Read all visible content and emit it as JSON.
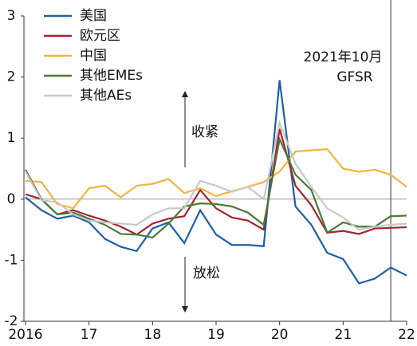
{
  "chart_data": {
    "type": "line",
    "x": [
      2016,
      2016.25,
      2016.5,
      2016.75,
      2017,
      2017.25,
      2017.5,
      2017.75,
      2018,
      2018.25,
      2018.5,
      2018.75,
      2019,
      2019.25,
      2019.5,
      2019.75,
      2020,
      2020.25,
      2020.5,
      2020.75,
      2021,
      2021.25,
      2021.5,
      2021.75,
      2022
    ],
    "series": [
      {
        "name": "美国",
        "color": "#1f5fa8",
        "values": [
          0.03,
          -0.18,
          -0.32,
          -0.27,
          -0.38,
          -0.65,
          -0.78,
          -0.85,
          -0.48,
          -0.38,
          -0.72,
          -0.18,
          -0.58,
          -0.75,
          -0.75,
          -0.77,
          1.95,
          -0.12,
          -0.42,
          -0.88,
          -0.98,
          -1.38,
          -1.3,
          -1.12,
          -1.25
        ]
      },
      {
        "name": "欧元区",
        "color": "#a3232f",
        "values": [
          0.08,
          0.0,
          -0.25,
          -0.18,
          -0.27,
          -0.35,
          -0.45,
          -0.58,
          -0.4,
          -0.32,
          -0.28,
          0.15,
          -0.15,
          -0.3,
          -0.35,
          -0.5,
          1.15,
          0.22,
          -0.1,
          -0.55,
          -0.52,
          -0.57,
          -0.48,
          -0.47,
          -0.46
        ]
      },
      {
        "name": "中国",
        "color": "#f5b342",
        "values": [
          0.3,
          0.28,
          -0.08,
          -0.15,
          0.18,
          0.22,
          0.03,
          0.22,
          0.25,
          0.33,
          0.1,
          0.18,
          0.05,
          0.13,
          0.2,
          0.28,
          0.45,
          0.78,
          0.8,
          0.82,
          0.5,
          0.45,
          0.48,
          0.4,
          0.2
        ]
      },
      {
        "name": "其他EMEs",
        "color": "#4a7a36",
        "values": [
          0.48,
          0.0,
          -0.25,
          -0.22,
          -0.32,
          -0.42,
          -0.57,
          -0.58,
          -0.63,
          -0.4,
          -0.12,
          -0.07,
          -0.08,
          -0.12,
          -0.22,
          -0.42,
          0.98,
          0.4,
          0.15,
          -0.55,
          -0.38,
          -0.45,
          -0.45,
          -0.28,
          -0.27
        ]
      },
      {
        "name": "其他AEs",
        "color": "#c8c8c8",
        "values": [
          0.45,
          -0.02,
          -0.05,
          -0.25,
          -0.35,
          -0.38,
          -0.4,
          -0.42,
          -0.25,
          -0.15,
          -0.15,
          0.3,
          0.22,
          0.12,
          0.2,
          0.0,
          1.25,
          0.58,
          0.2,
          -0.15,
          -0.3,
          -0.5,
          -0.45,
          -0.42,
          -0.4
        ]
      }
    ],
    "xlim": [
      2016,
      2022
    ],
    "xticks": [
      {
        "value": 2016,
        "label": "2016"
      },
      {
        "value": 2017,
        "label": "17"
      },
      {
        "value": 2018,
        "label": "18"
      },
      {
        "value": 2019,
        "label": "19"
      },
      {
        "value": 2020,
        "label": "20"
      },
      {
        "value": 2021,
        "label": "21"
      },
      {
        "value": 2022,
        "label": "22"
      }
    ],
    "ylim": [
      -2,
      3
    ],
    "yticks": [
      -2,
      -1,
      0,
      1,
      2,
      3
    ],
    "vline": 2021.75,
    "note": [
      "2021年10月",
      "GFSR"
    ],
    "up_label": "收紧",
    "down_label": "放松"
  }
}
